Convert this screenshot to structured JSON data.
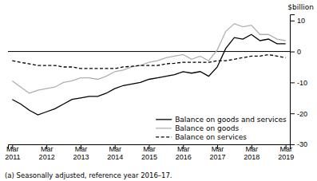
{
  "chart_data": {
    "type": "line",
    "ylabel": "$billion",
    "footnote": "(a) Seasonally adjusted, reference year 2016–17.",
    "categories": [
      "Mar\n2011",
      null,
      null,
      null,
      "Mar\n2012",
      null,
      null,
      null,
      "Mar\n2013",
      null,
      null,
      null,
      "Mar\n2014",
      null,
      null,
      null,
      "Mar\n2015",
      null,
      null,
      null,
      "Mar\n2016",
      null,
      null,
      null,
      "Mar\n2017",
      null,
      null,
      null,
      "Mar\n2018",
      null,
      null,
      null,
      "Mar\n2019"
    ],
    "series": [
      {
        "name": "Balance on goods and services",
        "color": "#000000",
        "line_style": "solid",
        "values": [
          -15.5,
          -17.0,
          -19.0,
          -20.5,
          -19.5,
          -18.5,
          -17.0,
          -15.5,
          -15.0,
          -14.5,
          -14.5,
          -13.5,
          -12.0,
          -11.0,
          -10.5,
          -10.0,
          -9.0,
          -8.5,
          -8.0,
          -7.5,
          -6.5,
          -7.0,
          -6.5,
          -8.0,
          -5.0,
          1.0,
          4.5,
          4.0,
          5.5,
          3.5,
          4.0,
          2.5,
          2.5
        ]
      },
      {
        "name": "Balance on goods",
        "color": "#b0b0b0",
        "line_style": "solid",
        "values": [
          -9.5,
          -11.5,
          -13.5,
          -12.5,
          -12.0,
          -11.5,
          -10.0,
          -9.5,
          -8.5,
          -8.5,
          -9.0,
          -8.0,
          -6.5,
          -6.0,
          -5.0,
          -4.5,
          -3.5,
          -3.0,
          -2.0,
          -1.5,
          -1.0,
          -2.5,
          -1.5,
          -3.0,
          0.5,
          6.5,
          9.0,
          8.0,
          8.5,
          5.5,
          5.5,
          4.0,
          3.5
        ]
      },
      {
        "name": "Balance on services",
        "color": "#000000",
        "line_style": "dashed",
        "values": [
          -3.0,
          -3.5,
          -4.0,
          -4.5,
          -4.5,
          -4.5,
          -5.0,
          -5.0,
          -5.5,
          -5.5,
          -5.5,
          -5.5,
          -5.5,
          -5.0,
          -4.8,
          -4.5,
          -4.5,
          -4.5,
          -4.0,
          -3.8,
          -3.5,
          -3.5,
          -3.5,
          -3.5,
          -3.0,
          -3.0,
          -2.5,
          -2.0,
          -1.5,
          -1.5,
          -1.0,
          -1.5,
          -2.0
        ]
      }
    ],
    "ylim": [
      -30,
      12
    ],
    "yticks": [
      -30,
      -20,
      -10,
      0,
      10
    ],
    "grid": false,
    "legend": "lower right"
  }
}
